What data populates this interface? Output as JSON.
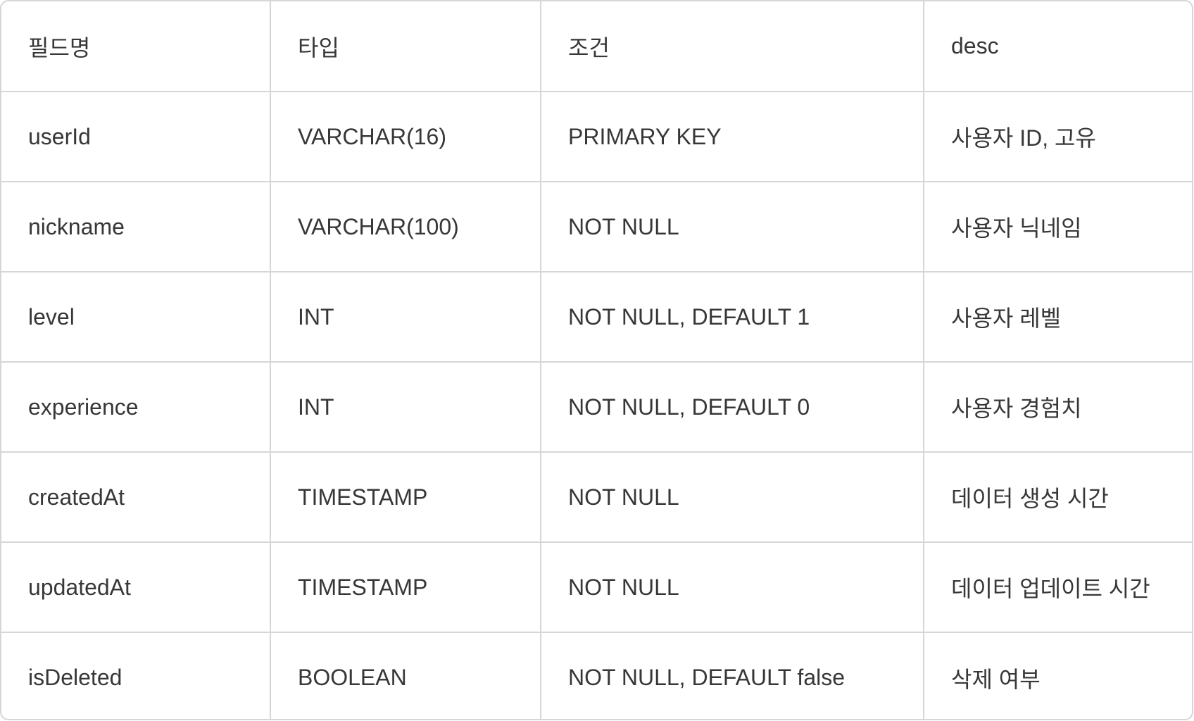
{
  "table": {
    "headers": [
      "필드명",
      "타입",
      "조건",
      "desc"
    ],
    "rows": [
      [
        "userId",
        "VARCHAR(16)",
        "PRIMARY KEY",
        "사용자 ID, 고유"
      ],
      [
        "nickname",
        "VARCHAR(100)",
        "NOT NULL",
        "사용자 닉네임"
      ],
      [
        "level",
        "INT",
        "NOT NULL, DEFAULT 1",
        "사용자 레벨"
      ],
      [
        "experience",
        "INT",
        "NOT NULL, DEFAULT 0",
        "사용자 경험치"
      ],
      [
        "createdAt",
        "TIMESTAMP",
        "NOT NULL",
        "데이터 생성 시간"
      ],
      [
        "updatedAt",
        "TIMESTAMP",
        "NOT NULL",
        "데이터 업데이트 시간"
      ],
      [
        "isDeleted",
        "BOOLEAN",
        "NOT NULL, DEFAULT false",
        "삭제 여부"
      ]
    ]
  }
}
